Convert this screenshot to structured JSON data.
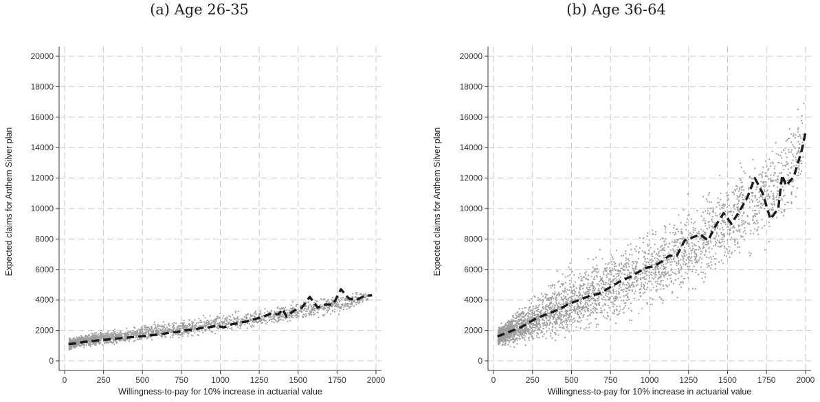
{
  "chart_data": [
    {
      "type": "scatter",
      "title": "(a) Age 26-35",
      "xlabel": "Willingness-to-pay for 10% increase in actuarial value",
      "ylabel": "Expected claims for Anthem Silver plan",
      "xlim": [
        0,
        2000
      ],
      "ylim": [
        0,
        20000
      ],
      "xticks": [
        0,
        250,
        500,
        750,
        1000,
        1250,
        1500,
        1750,
        2000
      ],
      "yticks": [
        0,
        2000,
        4000,
        6000,
        8000,
        10000,
        12000,
        14000,
        16000,
        18000,
        20000
      ],
      "grid": true,
      "scatter_color": "#9e9e9e",
      "line_color": "#1a1a1a",
      "scatter_summary": {
        "x": [
          30,
          100,
          200,
          300,
          400,
          500,
          600,
          750,
          900,
          1100,
          1300,
          1500,
          1800,
          1950
        ],
        "y_center": [
          1100,
          1250,
          1450,
          1550,
          1650,
          1800,
          1950,
          2100,
          2300,
          2600,
          2900,
          3300,
          3800,
          4200
        ],
        "y_spread": [
          350,
          350,
          380,
          400,
          420,
          450,
          500,
          550,
          550,
          500,
          500,
          600,
          600,
          300
        ]
      },
      "series": [
        {
          "x": [
            25,
            75,
            125,
            175,
            225,
            275,
            325,
            375,
            425,
            475,
            525,
            575,
            625,
            675,
            725,
            775,
            825,
            875,
            925,
            975,
            1025,
            1075,
            1125,
            1175,
            1225,
            1275,
            1325,
            1375,
            1400,
            1425,
            1475,
            1525,
            1575,
            1625,
            1675,
            1725,
            1775,
            1825,
            1875,
            1925,
            1975
          ],
          "y": [
            1100,
            1150,
            1250,
            1300,
            1350,
            1400,
            1450,
            1500,
            1550,
            1600,
            1650,
            1700,
            1750,
            1850,
            1900,
            2000,
            2050,
            2150,
            2200,
            2300,
            2200,
            2400,
            2500,
            2600,
            2750,
            2900,
            3100,
            3050,
            3400,
            2900,
            3300,
            3500,
            4200,
            3500,
            3700,
            3700,
            4700,
            4100,
            4000,
            4250,
            4300
          ]
        }
      ]
    },
    {
      "type": "scatter",
      "title": "(b) Age 36-64",
      "xlabel": "Willingness-to-pay for 10% increase in actuarial value",
      "ylabel": "Expected claims for Anthem Silver plan",
      "xlim": [
        0,
        2000
      ],
      "ylim": [
        0,
        20000
      ],
      "xticks": [
        0,
        250,
        500,
        750,
        1000,
        1250,
        1500,
        1750,
        2000
      ],
      "yticks": [
        0,
        2000,
        4000,
        6000,
        8000,
        10000,
        12000,
        14000,
        16000,
        18000,
        20000
      ],
      "grid": true,
      "scatter_color": "#9e9e9e",
      "line_color": "#1a1a1a",
      "scatter_summary": {
        "x": [
          30,
          100,
          200,
          300,
          400,
          500,
          600,
          700,
          850,
          1000,
          1150,
          1300,
          1450,
          1600,
          1750,
          1900,
          1990
        ],
        "y_center": [
          1600,
          1900,
          2400,
          2900,
          3400,
          3900,
          4300,
          4700,
          5300,
          6000,
          6800,
          7600,
          8600,
          10000,
          10800,
          12500,
          14500
        ],
        "y_spread": [
          500,
          800,
          1200,
          1500,
          1800,
          2000,
          2100,
          2200,
          2300,
          2400,
          2500,
          2700,
          2900,
          3000,
          3200,
          3200,
          2500
        ]
      },
      "series": [
        {
          "x": [
            25,
            75,
            125,
            175,
            225,
            275,
            325,
            375,
            425,
            475,
            525,
            575,
            625,
            675,
            725,
            775,
            825,
            875,
            925,
            975,
            1025,
            1075,
            1125,
            1175,
            1225,
            1275,
            1325,
            1375,
            1425,
            1475,
            1525,
            1575,
            1625,
            1675,
            1725,
            1775,
            1825,
            1850,
            1875,
            1925,
            1975,
            2000
          ],
          "y": [
            1600,
            1800,
            2000,
            2200,
            2500,
            2800,
            3000,
            3200,
            3400,
            3700,
            3900,
            4100,
            4300,
            4400,
            4700,
            5000,
            5300,
            5500,
            5800,
            6100,
            6200,
            6500,
            6900,
            6900,
            7900,
            8100,
            8300,
            7900,
            8900,
            9700,
            9000,
            9800,
            10700,
            12000,
            11000,
            9300,
            10000,
            12200,
            11500,
            12100,
            13800,
            15000
          ]
        }
      ]
    }
  ]
}
